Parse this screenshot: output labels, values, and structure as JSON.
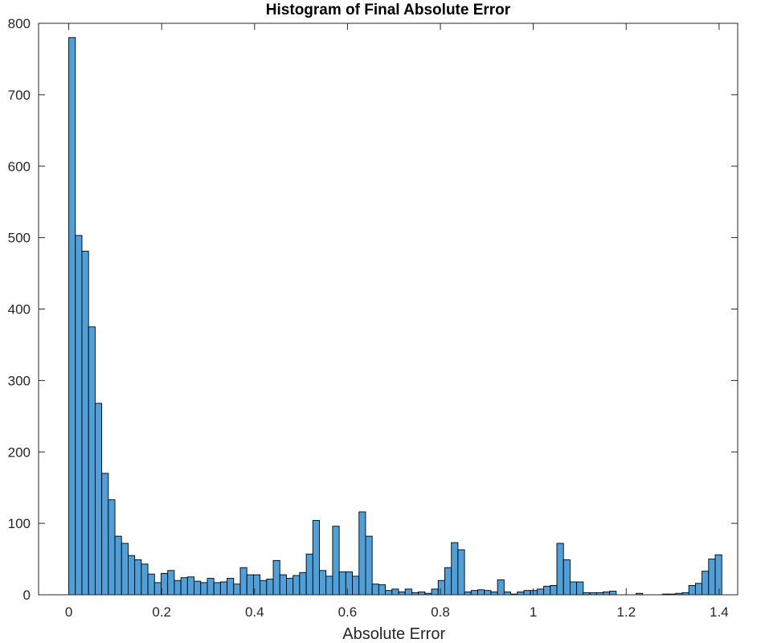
{
  "chart_data": {
    "type": "bar",
    "title": "Histogram of Final Absolute Error",
    "xlabel": "Absolute Error",
    "ylabel": "",
    "xlim": [
      -0.065,
      1.44
    ],
    "ylim": [
      0,
      800
    ],
    "xticks": [
      0,
      0.2,
      0.4,
      0.6,
      0.8,
      1,
      1.2,
      1.4
    ],
    "xtick_labels": [
      "0",
      "0.2",
      "0.4",
      "0.6",
      "0.8",
      "1",
      "1.2",
      "1.4"
    ],
    "yticks": [
      0,
      100,
      200,
      300,
      400,
      500,
      600,
      700,
      800
    ],
    "ytick_labels": [
      "0",
      "100",
      "200",
      "300",
      "400",
      "500",
      "600",
      "700",
      "800"
    ],
    "bin_start": 0,
    "bin_width": 0.0142,
    "bar_color": "#4fa0d8",
    "edge_color": "#000000",
    "grid": false,
    "values": [
      780,
      503,
      481,
      375,
      268,
      170,
      133,
      82,
      72,
      55,
      49,
      43,
      29,
      17,
      30,
      34,
      20,
      24,
      25,
      19,
      17,
      23,
      17,
      18,
      23,
      15,
      38,
      28,
      28,
      20,
      22,
      48,
      28,
      23,
      27,
      31,
      57,
      104,
      34,
      26,
      96,
      32,
      32,
      26,
      116,
      82,
      15,
      14,
      6,
      8,
      4,
      8,
      3,
      4,
      2,
      8,
      20,
      38,
      73,
      63,
      4,
      6,
      7,
      6,
      4,
      21,
      4,
      1,
      4,
      6,
      6,
      8,
      12,
      13,
      72,
      49,
      18,
      18,
      3,
      3,
      3,
      4,
      5,
      0,
      0,
      0,
      2,
      0,
      0,
      0,
      1,
      1,
      2,
      3,
      13,
      16,
      33,
      50,
      56
    ]
  }
}
